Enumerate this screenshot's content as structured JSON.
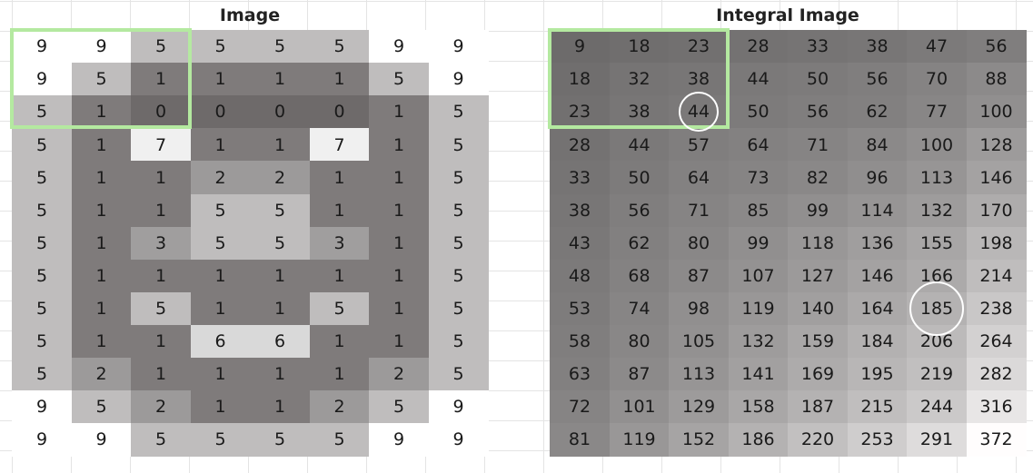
{
  "panels": [
    {
      "id": "image",
      "title": "Image",
      "grid": [
        [
          9,
          9,
          5,
          5,
          5,
          5,
          9,
          9
        ],
        [
          9,
          5,
          1,
          1,
          1,
          1,
          5,
          9
        ],
        [
          5,
          1,
          0,
          0,
          0,
          0,
          1,
          5
        ],
        [
          5,
          1,
          7,
          1,
          1,
          7,
          1,
          5
        ],
        [
          5,
          1,
          1,
          2,
          2,
          1,
          1,
          5
        ],
        [
          5,
          1,
          1,
          5,
          5,
          1,
          1,
          5
        ],
        [
          5,
          1,
          3,
          5,
          5,
          3,
          1,
          5
        ],
        [
          5,
          1,
          1,
          1,
          1,
          1,
          1,
          5
        ],
        [
          5,
          1,
          5,
          1,
          1,
          5,
          1,
          5
        ],
        [
          5,
          1,
          1,
          6,
          6,
          1,
          1,
          5
        ],
        [
          5,
          2,
          1,
          1,
          1,
          1,
          2,
          5
        ],
        [
          9,
          5,
          2,
          1,
          1,
          2,
          5,
          9
        ],
        [
          9,
          9,
          5,
          5,
          5,
          5,
          9,
          9
        ]
      ],
      "highlight_box": {
        "rows": [
          0,
          2
        ],
        "cols": [
          0,
          2
        ]
      },
      "circles": []
    },
    {
      "id": "integral",
      "title": "Integral Image",
      "grid": [
        [
          9,
          18,
          23,
          28,
          33,
          38,
          47,
          56
        ],
        [
          18,
          32,
          38,
          44,
          50,
          56,
          70,
          88
        ],
        [
          23,
          38,
          44,
          50,
          56,
          62,
          77,
          100
        ],
        [
          28,
          44,
          57,
          64,
          71,
          84,
          100,
          128
        ],
        [
          33,
          50,
          64,
          73,
          82,
          96,
          113,
          146
        ],
        [
          38,
          56,
          71,
          85,
          99,
          114,
          132,
          170
        ],
        [
          43,
          62,
          80,
          99,
          118,
          136,
          155,
          198
        ],
        [
          48,
          68,
          87,
          107,
          127,
          146,
          166,
          214
        ],
        [
          53,
          74,
          98,
          119,
          140,
          164,
          185,
          238
        ],
        [
          58,
          80,
          105,
          132,
          159,
          184,
          206,
          264
        ],
        [
          63,
          87,
          113,
          141,
          169,
          195,
          219,
          282
        ],
        [
          72,
          101,
          129,
          158,
          187,
          215,
          244,
          316
        ],
        [
          81,
          119,
          152,
          186,
          220,
          253,
          291,
          372
        ]
      ],
      "highlight_box": {
        "rows": [
          0,
          2
        ],
        "cols": [
          0,
          2
        ]
      },
      "circles": [
        {
          "row": 2,
          "col": 2
        },
        {
          "row": 8,
          "col": 6
        }
      ]
    }
  ]
}
